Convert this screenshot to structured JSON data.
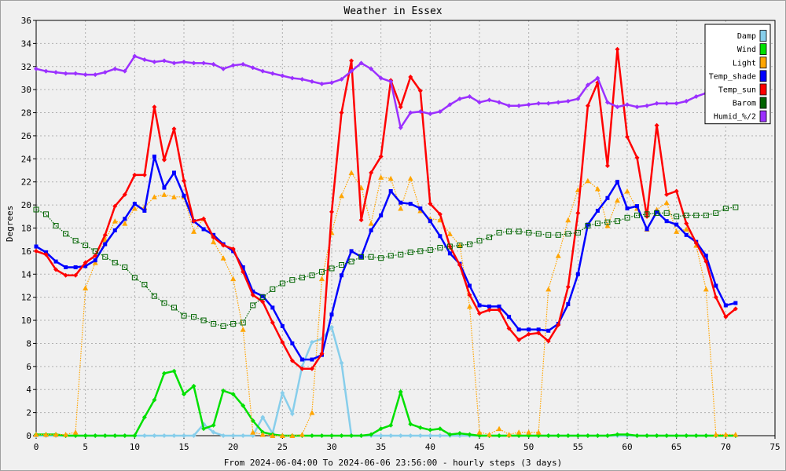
{
  "chart_data": {
    "type": "line",
    "title": "Weather in Essex",
    "ylabel": "Degrees",
    "xlabel": "From 2024-06-04:00 To 2024-06-06 23:56:00 - hourly steps (3 days)",
    "xlim": [
      0,
      75
    ],
    "ylim": [
      0,
      36
    ],
    "xticks": [
      0,
      5,
      10,
      15,
      20,
      25,
      30,
      35,
      40,
      45,
      50,
      55,
      60,
      65,
      70,
      75
    ],
    "yticks": [
      0,
      2,
      4,
      6,
      8,
      10,
      12,
      14,
      16,
      18,
      20,
      22,
      24,
      26,
      28,
      30,
      32,
      34,
      36
    ],
    "grid": true,
    "legend_position": "top-right",
    "series": [
      {
        "name": "Damp",
        "color": "#87ceeb",
        "style": "solid",
        "marker": "diamond",
        "x": [
          0,
          1,
          2,
          3,
          4,
          5,
          6,
          7,
          8,
          9,
          10,
          11,
          12,
          13,
          14,
          15,
          16,
          17,
          18,
          19,
          20,
          21,
          22,
          23,
          24,
          25,
          26,
          27,
          28,
          29,
          30,
          31,
          32,
          33,
          34,
          35,
          36,
          37,
          38,
          39,
          40,
          41,
          42,
          43,
          44,
          45,
          46,
          47,
          48,
          49,
          50,
          51,
          52,
          53,
          54,
          55,
          56,
          57,
          58,
          59,
          60,
          61,
          62,
          63,
          64,
          65,
          66,
          67,
          68,
          69,
          70,
          71
        ],
        "y": [
          0,
          0,
          0,
          0,
          0,
          0,
          0,
          0,
          0,
          0,
          0,
          0,
          0,
          0,
          0,
          0,
          0,
          1,
          0.3,
          0,
          0,
          0,
          0,
          1.6,
          0.2,
          3.7,
          1.9,
          6,
          8.1,
          8.4,
          9.4,
          6.3,
          0,
          0,
          0,
          0,
          0,
          0,
          0,
          0,
          0,
          0,
          0,
          0,
          0,
          0,
          0,
          0,
          0,
          0,
          0,
          0,
          0,
          0,
          0,
          0,
          0,
          0,
          0,
          0,
          0,
          0,
          0,
          0,
          0,
          0,
          0,
          0,
          0,
          0,
          0,
          0
        ]
      },
      {
        "name": "Wind",
        "color": "#00e000",
        "style": "solid",
        "marker": "diamond",
        "x": [
          0,
          1,
          2,
          3,
          4,
          5,
          6,
          7,
          8,
          9,
          10,
          11,
          12,
          13,
          14,
          15,
          16,
          17,
          18,
          19,
          20,
          21,
          22,
          23,
          24,
          25,
          26,
          27,
          28,
          29,
          30,
          31,
          32,
          33,
          34,
          35,
          36,
          37,
          38,
          39,
          40,
          41,
          42,
          43,
          44,
          45,
          46,
          47,
          48,
          49,
          50,
          51,
          52,
          53,
          54,
          55,
          56,
          57,
          58,
          59,
          60,
          61,
          62,
          63,
          64,
          65,
          66,
          67,
          68,
          69,
          70,
          71
        ],
        "y": [
          0.1,
          0.1,
          0.1,
          0,
          0,
          0,
          0,
          0,
          0,
          0,
          0,
          1.6,
          3.1,
          5.4,
          5.6,
          3.6,
          4.3,
          0.6,
          0.9,
          3.9,
          3.6,
          2.6,
          1.3,
          0.3,
          0.1,
          0,
          0,
          0,
          0,
          0,
          0,
          0,
          0,
          0,
          0.1,
          0.6,
          0.9,
          3.8,
          1,
          0.7,
          0.5,
          0.6,
          0.1,
          0.2,
          0.1,
          0,
          0,
          0,
          0,
          0,
          0,
          0,
          0,
          0,
          0,
          0,
          0,
          0,
          0,
          0.1,
          0.1,
          0,
          0,
          0,
          0,
          0,
          0,
          0,
          0,
          0,
          0,
          0
        ]
      },
      {
        "name": "Light",
        "color": "#ffa500",
        "style": "dotted",
        "marker": "triangle",
        "x": [
          0,
          1,
          2,
          3,
          4,
          5,
          6,
          7,
          8,
          9,
          10,
          11,
          12,
          13,
          14,
          15,
          16,
          17,
          18,
          19,
          20,
          21,
          22,
          23,
          24,
          25,
          26,
          27,
          28,
          29,
          30,
          31,
          32,
          33,
          34,
          35,
          36,
          37,
          38,
          39,
          40,
          41,
          42,
          43,
          44,
          45,
          46,
          47,
          48,
          49,
          50,
          51,
          52,
          53,
          54,
          55,
          56,
          57,
          58,
          59,
          60,
          61,
          62,
          63,
          64,
          65,
          66,
          67,
          68,
          69,
          70,
          71
        ],
        "y": [
          0.1,
          0.1,
          0.1,
          0.1,
          0.3,
          12.8,
          15,
          17,
          18.6,
          18.4,
          19.7,
          19.8,
          20.7,
          20.9,
          20.7,
          20.7,
          17.7,
          18.8,
          16.8,
          15.4,
          13.6,
          9.2,
          0.3,
          0.1,
          0,
          0,
          0,
          0.1,
          2,
          13.6,
          17.6,
          20.8,
          22.8,
          21.5,
          18.4,
          22.4,
          22.3,
          19.7,
          22.3,
          19.5,
          18.8,
          18.7,
          17.5,
          16.5,
          11.2,
          0.3,
          0.1,
          0.6,
          0.1,
          0.3,
          0.3,
          0.3,
          12.7,
          15.6,
          18.7,
          21.3,
          22.1,
          21.4,
          18.2,
          20.4,
          21.2,
          19.7,
          17.9,
          19.6,
          20.2,
          17.7,
          17.9,
          16.5,
          12.7,
          0.1,
          0.1,
          0.1
        ]
      },
      {
        "name": "Temp_shade",
        "color": "#0000ff",
        "style": "solid",
        "marker": "square",
        "x": [
          0,
          1,
          2,
          3,
          4,
          5,
          6,
          7,
          8,
          9,
          10,
          11,
          12,
          13,
          14,
          15,
          16,
          17,
          18,
          19,
          20,
          21,
          22,
          23,
          24,
          25,
          26,
          27,
          28,
          29,
          30,
          31,
          32,
          33,
          34,
          35,
          36,
          37,
          38,
          39,
          40,
          41,
          42,
          43,
          44,
          45,
          46,
          47,
          48,
          49,
          50,
          51,
          52,
          53,
          54,
          55,
          56,
          57,
          58,
          59,
          60,
          61,
          62,
          63,
          64,
          65,
          66,
          67,
          68,
          69,
          70,
          71
        ],
        "y": [
          16.4,
          15.9,
          15.1,
          14.6,
          14.6,
          14.7,
          15.2,
          16.6,
          17.8,
          18.8,
          20.1,
          19.5,
          24.2,
          21.5,
          22.8,
          20.8,
          18.6,
          17.9,
          17.4,
          16.6,
          16,
          14.6,
          12.5,
          12.1,
          11.1,
          9.5,
          8,
          6.6,
          6.6,
          7,
          10.5,
          13.9,
          16,
          15.5,
          17.8,
          19.1,
          21.2,
          20.2,
          20.1,
          19.7,
          18.6,
          17.3,
          15.8,
          14.9,
          13,
          11.3,
          11.2,
          11.2,
          10.3,
          9.2,
          9.2,
          9.2,
          9.1,
          9.7,
          11.4,
          14,
          18.3,
          19.5,
          20.6,
          22,
          19.7,
          19.9,
          17.9,
          19.4,
          18.6,
          18.3,
          17.4,
          16.8,
          15.6,
          13,
          11.3,
          11.5
        ]
      },
      {
        "name": "Temp_sun",
        "color": "#ff0000",
        "style": "solid",
        "marker": "diamond",
        "x": [
          0,
          1,
          2,
          3,
          4,
          5,
          6,
          7,
          8,
          9,
          10,
          11,
          12,
          13,
          14,
          15,
          16,
          17,
          18,
          19,
          20,
          21,
          22,
          23,
          24,
          25,
          26,
          27,
          28,
          29,
          30,
          31,
          32,
          33,
          34,
          35,
          36,
          37,
          38,
          39,
          40,
          41,
          42,
          43,
          44,
          45,
          46,
          47,
          48,
          49,
          50,
          51,
          52,
          53,
          54,
          55,
          56,
          57,
          58,
          59,
          60,
          61,
          62,
          63,
          64,
          65,
          66,
          67,
          68,
          69,
          70,
          71
        ],
        "y": [
          16,
          15.7,
          14.4,
          13.9,
          13.9,
          15,
          15.6,
          17.4,
          19.9,
          20.9,
          22.6,
          22.6,
          28.5,
          23.9,
          26.6,
          22.1,
          18.6,
          18.8,
          17.2,
          16.5,
          16.2,
          14.2,
          12.2,
          11.6,
          9.8,
          8.1,
          6.5,
          5.8,
          5.8,
          7.1,
          19.4,
          28,
          32.5,
          18.7,
          22.8,
          24.2,
          30.8,
          28.5,
          31.1,
          29.9,
          20.1,
          19.2,
          16.4,
          14.8,
          12.2,
          10.6,
          10.9,
          10.9,
          9.3,
          8.3,
          8.8,
          8.9,
          8.2,
          9.6,
          12.9,
          19.3,
          28.6,
          30.6,
          23.4,
          33.5,
          25.9,
          24.1,
          19,
          26.9,
          20.9,
          21.2,
          18.4,
          16.7,
          15.1,
          12,
          10.3,
          11
        ]
      },
      {
        "name": "Barom",
        "color": "#006400",
        "style": "dotted",
        "marker": "hollow-square",
        "x": [
          0,
          1,
          2,
          3,
          4,
          5,
          6,
          7,
          8,
          9,
          10,
          11,
          12,
          13,
          14,
          15,
          16,
          17,
          18,
          19,
          20,
          21,
          22,
          23,
          24,
          25,
          26,
          27,
          28,
          29,
          30,
          31,
          32,
          33,
          34,
          35,
          36,
          37,
          38,
          39,
          40,
          41,
          42,
          43,
          44,
          45,
          46,
          47,
          48,
          49,
          50,
          51,
          52,
          53,
          54,
          55,
          56,
          57,
          58,
          59,
          60,
          61,
          62,
          63,
          64,
          65,
          66,
          67,
          68,
          69,
          70,
          71
        ],
        "y": [
          19.6,
          19.2,
          18.2,
          17.5,
          16.9,
          16.5,
          16,
          15.5,
          15,
          14.6,
          13.7,
          13.1,
          12.1,
          11.5,
          11.1,
          10.4,
          10.3,
          10,
          9.7,
          9.5,
          9.7,
          9.8,
          11.3,
          12,
          12.7,
          13.2,
          13.5,
          13.7,
          13.9,
          14.2,
          14.5,
          14.8,
          15.1,
          15.5,
          15.5,
          15.4,
          15.6,
          15.7,
          15.9,
          16,
          16.1,
          16.3,
          16.4,
          16.5,
          16.6,
          16.9,
          17.2,
          17.6,
          17.7,
          17.7,
          17.6,
          17.5,
          17.4,
          17.4,
          17.5,
          17.6,
          18.2,
          18.4,
          18.5,
          18.6,
          18.9,
          19.1,
          19.2,
          19.3,
          19.3,
          19,
          19.1,
          19.1,
          19.1,
          19.3,
          19.7,
          19.8
        ]
      },
      {
        "name": "Humid_%/2",
        "color": "#9b30ff",
        "style": "solid",
        "marker": "diamond",
        "x": [
          0,
          1,
          2,
          3,
          4,
          5,
          6,
          7,
          8,
          9,
          10,
          11,
          12,
          13,
          14,
          15,
          16,
          17,
          18,
          19,
          20,
          21,
          22,
          23,
          24,
          25,
          26,
          27,
          28,
          29,
          30,
          31,
          32,
          33,
          34,
          35,
          36,
          37,
          38,
          39,
          40,
          41,
          42,
          43,
          44,
          45,
          46,
          47,
          48,
          49,
          50,
          51,
          52,
          53,
          54,
          55,
          56,
          57,
          58,
          59,
          60,
          61,
          62,
          63,
          64,
          65,
          66,
          67,
          68,
          69,
          70,
          71
        ],
        "y": [
          31.8,
          31.6,
          31.5,
          31.4,
          31.4,
          31.3,
          31.3,
          31.5,
          31.8,
          31.6,
          32.9,
          32.6,
          32.4,
          32.5,
          32.3,
          32.4,
          32.3,
          32.3,
          32.2,
          31.8,
          32.1,
          32.2,
          31.9,
          31.6,
          31.4,
          31.2,
          31,
          30.9,
          30.7,
          30.5,
          30.6,
          30.9,
          31.6,
          32.3,
          31.8,
          31,
          30.7,
          26.7,
          28,
          28.1,
          27.9,
          28.1,
          28.7,
          29.2,
          29.4,
          28.9,
          29.1,
          28.9,
          28.6,
          28.6,
          28.7,
          28.8,
          28.8,
          28.9,
          29,
          29.2,
          30.4,
          31,
          28.9,
          28.5,
          28.7,
          28.5,
          28.6,
          28.8,
          28.8,
          28.8,
          29,
          29.4,
          29.7,
          29.7,
          29.7,
          29.7
        ]
      }
    ]
  }
}
